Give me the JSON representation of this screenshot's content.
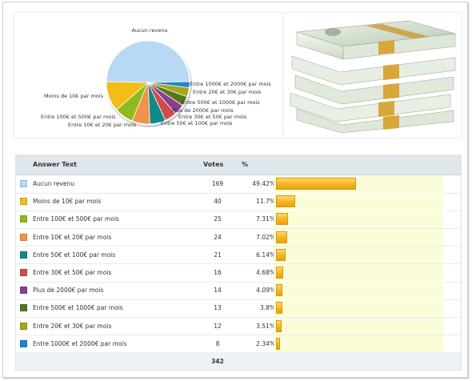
{
  "chart_data": {
    "type": "pie",
    "categories": [
      "Aucun revenu",
      "Moins de 10€ par mois",
      "Entre 100€ et 500€ par mois",
      "Entre 10€ et 20€ par mois",
      "Entre 50€ et 100€ par mois",
      "Entre 30€ et 50€ par mois",
      "Plus de 2000€ par mois",
      "Entre 500€ et 1000€ par mois",
      "Entre 20€ et 30€ par mois",
      "Entre 1000€ et 2000€ par mois"
    ],
    "values": [
      169,
      40,
      25,
      24,
      21,
      16,
      14,
      13,
      12,
      8
    ],
    "colors": [
      "#b8d9f4",
      "#f2bd18",
      "#8fba1c",
      "#f0924a",
      "#138a8a",
      "#d04b4b",
      "#8b3d92",
      "#55781f",
      "#a7a51a",
      "#1f86c8"
    ]
  },
  "table": {
    "headers": {
      "answer": "Answer Text",
      "votes": "Votes",
      "percent": "%"
    },
    "rows": [
      {
        "label": "Aucun revenu",
        "votes": "169",
        "percent": "49.42%",
        "color": "#b8d9f4",
        "fraction": 0.4942
      },
      {
        "label": "Moins de 10€ par mois",
        "votes": "40",
        "percent": "11.7%",
        "color": "#f2bd18",
        "fraction": 0.117
      },
      {
        "label": "Entre 100€ et 500€ par mois",
        "votes": "25",
        "percent": "7.31%",
        "color": "#8fba1c",
        "fraction": 0.0731
      },
      {
        "label": "Entre 10€ et 20€ par mois",
        "votes": "24",
        "percent": "7.02%",
        "color": "#f0924a",
        "fraction": 0.0702
      },
      {
        "label": "Entre 50€ et 100€ par mois",
        "votes": "21",
        "percent": "6.14%",
        "color": "#138a8a",
        "fraction": 0.0614
      },
      {
        "label": "Entre 30€ et 50€ par mois",
        "votes": "16",
        "percent": "4.68%",
        "color": "#d04b4b",
        "fraction": 0.0468
      },
      {
        "label": "Plus de 2000€ par mois",
        "votes": "14",
        "percent": "4.09%",
        "color": "#8b3d92",
        "fraction": 0.0409
      },
      {
        "label": "Entre 500€ et 1000€ par mois",
        "votes": "13",
        "percent": "3.8%",
        "color": "#55781f",
        "fraction": 0.038
      },
      {
        "label": "Entre 20€ et 30€ par mois",
        "votes": "12",
        "percent": "3.51%",
        "color": "#a7a51a",
        "fraction": 0.0351
      },
      {
        "label": "Entre 1000€ et 2000€ par mois",
        "votes": "8",
        "percent": "2.34%",
        "color": "#1f86c8",
        "fraction": 0.0234
      }
    ],
    "total_votes": "342"
  },
  "image": {
    "icon": "money-stack-image"
  }
}
